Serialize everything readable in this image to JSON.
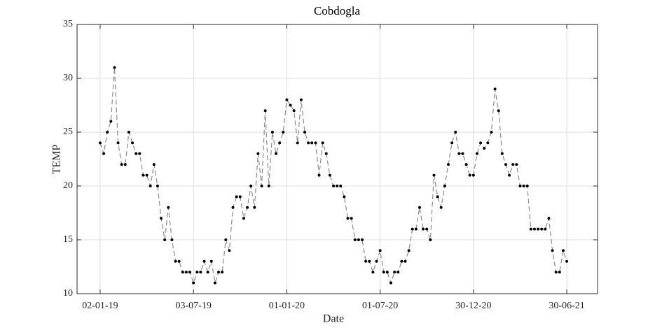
{
  "chart_data": {
    "type": "line",
    "title": "Cobdogla",
    "xlabel": "Date",
    "ylabel": "TEMP",
    "x": [
      "02-01-19",
      "09-01-19",
      "16-01-19",
      "23-01-19",
      "30-01-19",
      "06-02-19",
      "13-02-19",
      "20-02-19",
      "27-02-19",
      "06-03-19",
      "13-03-19",
      "20-03-19",
      "27-03-19",
      "03-04-19",
      "10-04-19",
      "17-04-19",
      "24-04-19",
      "01-05-19",
      "08-05-19",
      "15-05-19",
      "22-05-19",
      "29-05-19",
      "05-06-19",
      "12-06-19",
      "19-06-19",
      "26-06-19",
      "03-07-19",
      "10-07-19",
      "17-07-19",
      "24-07-19",
      "31-07-19",
      "07-08-19",
      "14-08-19",
      "21-08-19",
      "28-08-19",
      "04-09-19",
      "11-09-19",
      "18-09-19",
      "25-09-19",
      "02-10-19",
      "09-10-19",
      "16-10-19",
      "23-10-19",
      "30-10-19",
      "06-11-19",
      "13-11-19",
      "20-11-19",
      "27-11-19",
      "04-12-19",
      "11-12-19",
      "18-12-19",
      "25-12-19",
      "01-01-20",
      "08-01-20",
      "15-01-20",
      "22-01-20",
      "29-01-20",
      "05-02-20",
      "12-02-20",
      "19-02-20",
      "26-02-20",
      "04-03-20",
      "11-03-20",
      "18-03-20",
      "25-03-20",
      "01-04-20",
      "08-04-20",
      "15-04-20",
      "22-04-20",
      "29-04-20",
      "06-05-20",
      "13-05-20",
      "20-05-20",
      "27-05-20",
      "03-06-20",
      "10-06-20",
      "17-06-20",
      "24-06-20",
      "01-07-20",
      "08-07-20",
      "15-07-20",
      "22-07-20",
      "29-07-20",
      "05-08-20",
      "12-08-20",
      "19-08-20",
      "26-08-20",
      "02-09-20",
      "09-09-20",
      "16-09-20",
      "23-09-20",
      "30-09-20",
      "07-10-20",
      "14-10-20",
      "21-10-20",
      "28-10-20",
      "04-11-20",
      "11-11-20",
      "18-11-20",
      "25-11-20",
      "02-12-20",
      "09-12-20",
      "16-12-20",
      "23-12-20",
      "30-12-20",
      "06-01-21",
      "13-01-21",
      "20-01-21",
      "27-01-21",
      "03-02-21",
      "10-02-21",
      "17-02-21",
      "24-02-21",
      "03-03-21",
      "10-03-21",
      "17-03-21",
      "24-03-21",
      "31-03-21",
      "07-04-21",
      "14-04-21",
      "21-04-21",
      "28-04-21",
      "05-05-21",
      "12-05-21",
      "19-05-21",
      "26-05-21",
      "02-06-21",
      "09-06-21",
      "16-06-21",
      "23-06-21",
      "30-06-21"
    ],
    "series": [
      {
        "name": "TEMP",
        "color": "#000000",
        "line_color": "#8c8c8c",
        "values": [
          24,
          23,
          25,
          26,
          31,
          24,
          22,
          22,
          25,
          24,
          23,
          23,
          21,
          21,
          20,
          22,
          20,
          17,
          15,
          18,
          15,
          13,
          13,
          12,
          12,
          12,
          11,
          12,
          12,
          13,
          12,
          13,
          11,
          12,
          12,
          15,
          14,
          18,
          19,
          19,
          17,
          18,
          20,
          18,
          23,
          20,
          27,
          20,
          25,
          23,
          24,
          25,
          28,
          27.5,
          27,
          24,
          28,
          25,
          24,
          24,
          24,
          21,
          24,
          23,
          21,
          20,
          20,
          20,
          19,
          17,
          17,
          15,
          15,
          15,
          13,
          13,
          12,
          13,
          14,
          12,
          12,
          11,
          12,
          12,
          13,
          13,
          14,
          16,
          16,
          18,
          16,
          16,
          15,
          21,
          19,
          18,
          20,
          22,
          24,
          25,
          23,
          23,
          22,
          21,
          21,
          23,
          24,
          23.5,
          24,
          25,
          29,
          27,
          23,
          22,
          21,
          22,
          22,
          20,
          20,
          20,
          16,
          16,
          16,
          16,
          16,
          17,
          14,
          12,
          12,
          14,
          13
        ]
      }
    ],
    "xlim": [
      "18-11-18",
      "29-08-21"
    ],
    "xticks": [
      "02-01-19",
      "03-07-19",
      "01-01-20",
      "01-07-20",
      "30-12-20",
      "30-06-21"
    ],
    "ylim": [
      10,
      35
    ],
    "yticks": [
      10,
      15,
      20,
      25,
      30,
      35
    ],
    "grid": true
  }
}
